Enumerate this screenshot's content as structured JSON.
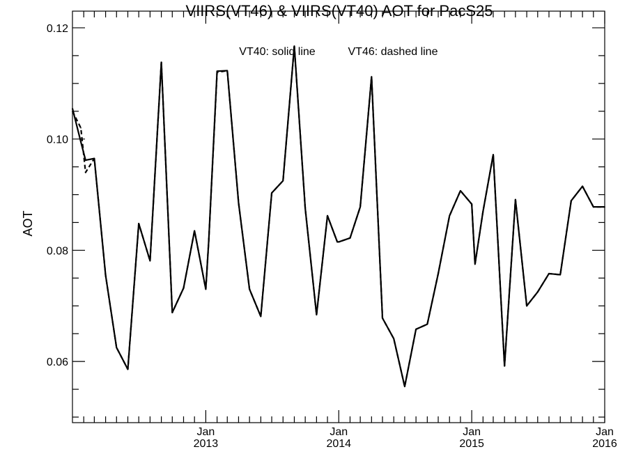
{
  "chart_data": {
    "type": "line",
    "title": "VIIRS(VT46) & VIIRS(VT40)  AOT for PacS25",
    "annotation_solid": "VT40: solid line",
    "annotation_dashed": "VT46: dashed line",
    "xlabel": "",
    "ylabel": "AOT",
    "xlim": [
      "2012-01-01",
      "2016-01-01"
    ],
    "ylim": [
      0.049,
      0.123
    ],
    "y_ticks": [
      {
        "value": 0.06,
        "label": "0.06"
      },
      {
        "value": 0.08,
        "label": "0.08"
      },
      {
        "value": 0.1,
        "label": "0.10"
      },
      {
        "value": 0.12,
        "label": "0.12"
      }
    ],
    "y_minor_step": 0.005,
    "x_ticks": [
      {
        "date": "2013-01-01",
        "month": "Jan",
        "year": "2013"
      },
      {
        "date": "2014-01-01",
        "month": "Jan",
        "year": "2014"
      },
      {
        "date": "2015-01-01",
        "month": "Jan",
        "year": "2015"
      },
      {
        "date": "2016-01-01",
        "month": "Jan",
        "year": "2016"
      }
    ],
    "grid": false,
    "x": [
      "2012-01-01",
      "2012-01-24",
      "2012-02-06",
      "2012-03-01",
      "2012-04-01",
      "2012-05-01",
      "2012-06-01",
      "2012-07-01",
      "2012-08-01",
      "2012-09-01",
      "2012-10-01",
      "2012-11-01",
      "2012-12-01",
      "2013-01-01",
      "2013-01-09",
      "2013-02-01",
      "2013-03-01",
      "2013-04-01",
      "2013-05-01",
      "2013-06-01",
      "2013-07-01",
      "2013-08-01",
      "2013-09-01",
      "2013-10-01",
      "2013-11-01",
      "2013-12-01",
      "2013-12-28",
      "2014-01-01",
      "2014-02-01",
      "2014-03-01",
      "2014-04-01",
      "2014-05-01",
      "2014-06-01",
      "2014-07-01",
      "2014-08-01",
      "2014-09-01",
      "2014-10-01",
      "2014-11-01",
      "2014-12-01",
      "2015-01-01",
      "2015-01-10",
      "2015-02-01",
      "2015-03-01",
      "2015-04-01",
      "2015-05-01",
      "2015-06-01",
      "2015-07-01",
      "2015-08-01",
      "2015-09-01",
      "2015-10-01",
      "2015-11-01",
      "2015-12-01",
      "2015-12-27",
      "2016-01-01"
    ],
    "series": [
      {
        "name": "VT40",
        "style": "solid",
        "color": "#000000",
        "values": [
          0.1055,
          0.0995,
          0.0962,
          0.0965,
          0.0755,
          0.0625,
          0.0586,
          0.0848,
          0.0781,
          0.1138,
          0.0688,
          0.0732,
          0.0835,
          0.073,
          0.0816,
          0.1122,
          0.1123,
          0.0885,
          0.073,
          0.0681,
          0.0903,
          0.0925,
          0.1167,
          0.0875,
          0.0684,
          0.0862,
          0.0815,
          0.0815,
          0.0822,
          0.0878,
          0.1112,
          0.0678,
          0.0641,
          0.0555,
          0.0658,
          0.0667,
          0.0758,
          0.0862,
          0.0907,
          0.0883,
          0.0775,
          0.087,
          0.0972,
          0.0592,
          0.0891,
          0.07,
          0.0725,
          0.0758,
          0.0756,
          0.0889,
          0.0915,
          0.0878,
          0.0878,
          0.0878
        ]
      },
      {
        "name": "VT46",
        "style": "dashed",
        "color": "#000000",
        "values": [
          0.105,
          0.102,
          0.094,
          0.0965,
          0.0755,
          0.0625,
          0.0586,
          0.0848,
          0.0781,
          0.1138,
          0.0688,
          0.0732,
          0.0835,
          0.073,
          0.0816,
          0.112,
          0.1123,
          0.0885,
          0.073,
          0.0681,
          0.0903,
          0.0925,
          0.1167,
          0.0875,
          0.0684,
          0.0862,
          0.0815,
          0.0815,
          0.0822,
          0.0878,
          0.1112,
          0.0678,
          0.0641,
          0.0555,
          0.0658,
          0.0667,
          0.0758,
          0.0862,
          0.0907,
          0.0883,
          0.0775,
          0.087,
          0.0972,
          0.0592,
          0.0891,
          0.07,
          0.0725,
          0.0758,
          0.0756,
          0.0889,
          0.0915,
          0.0878,
          0.0878,
          0.0878
        ]
      }
    ]
  }
}
